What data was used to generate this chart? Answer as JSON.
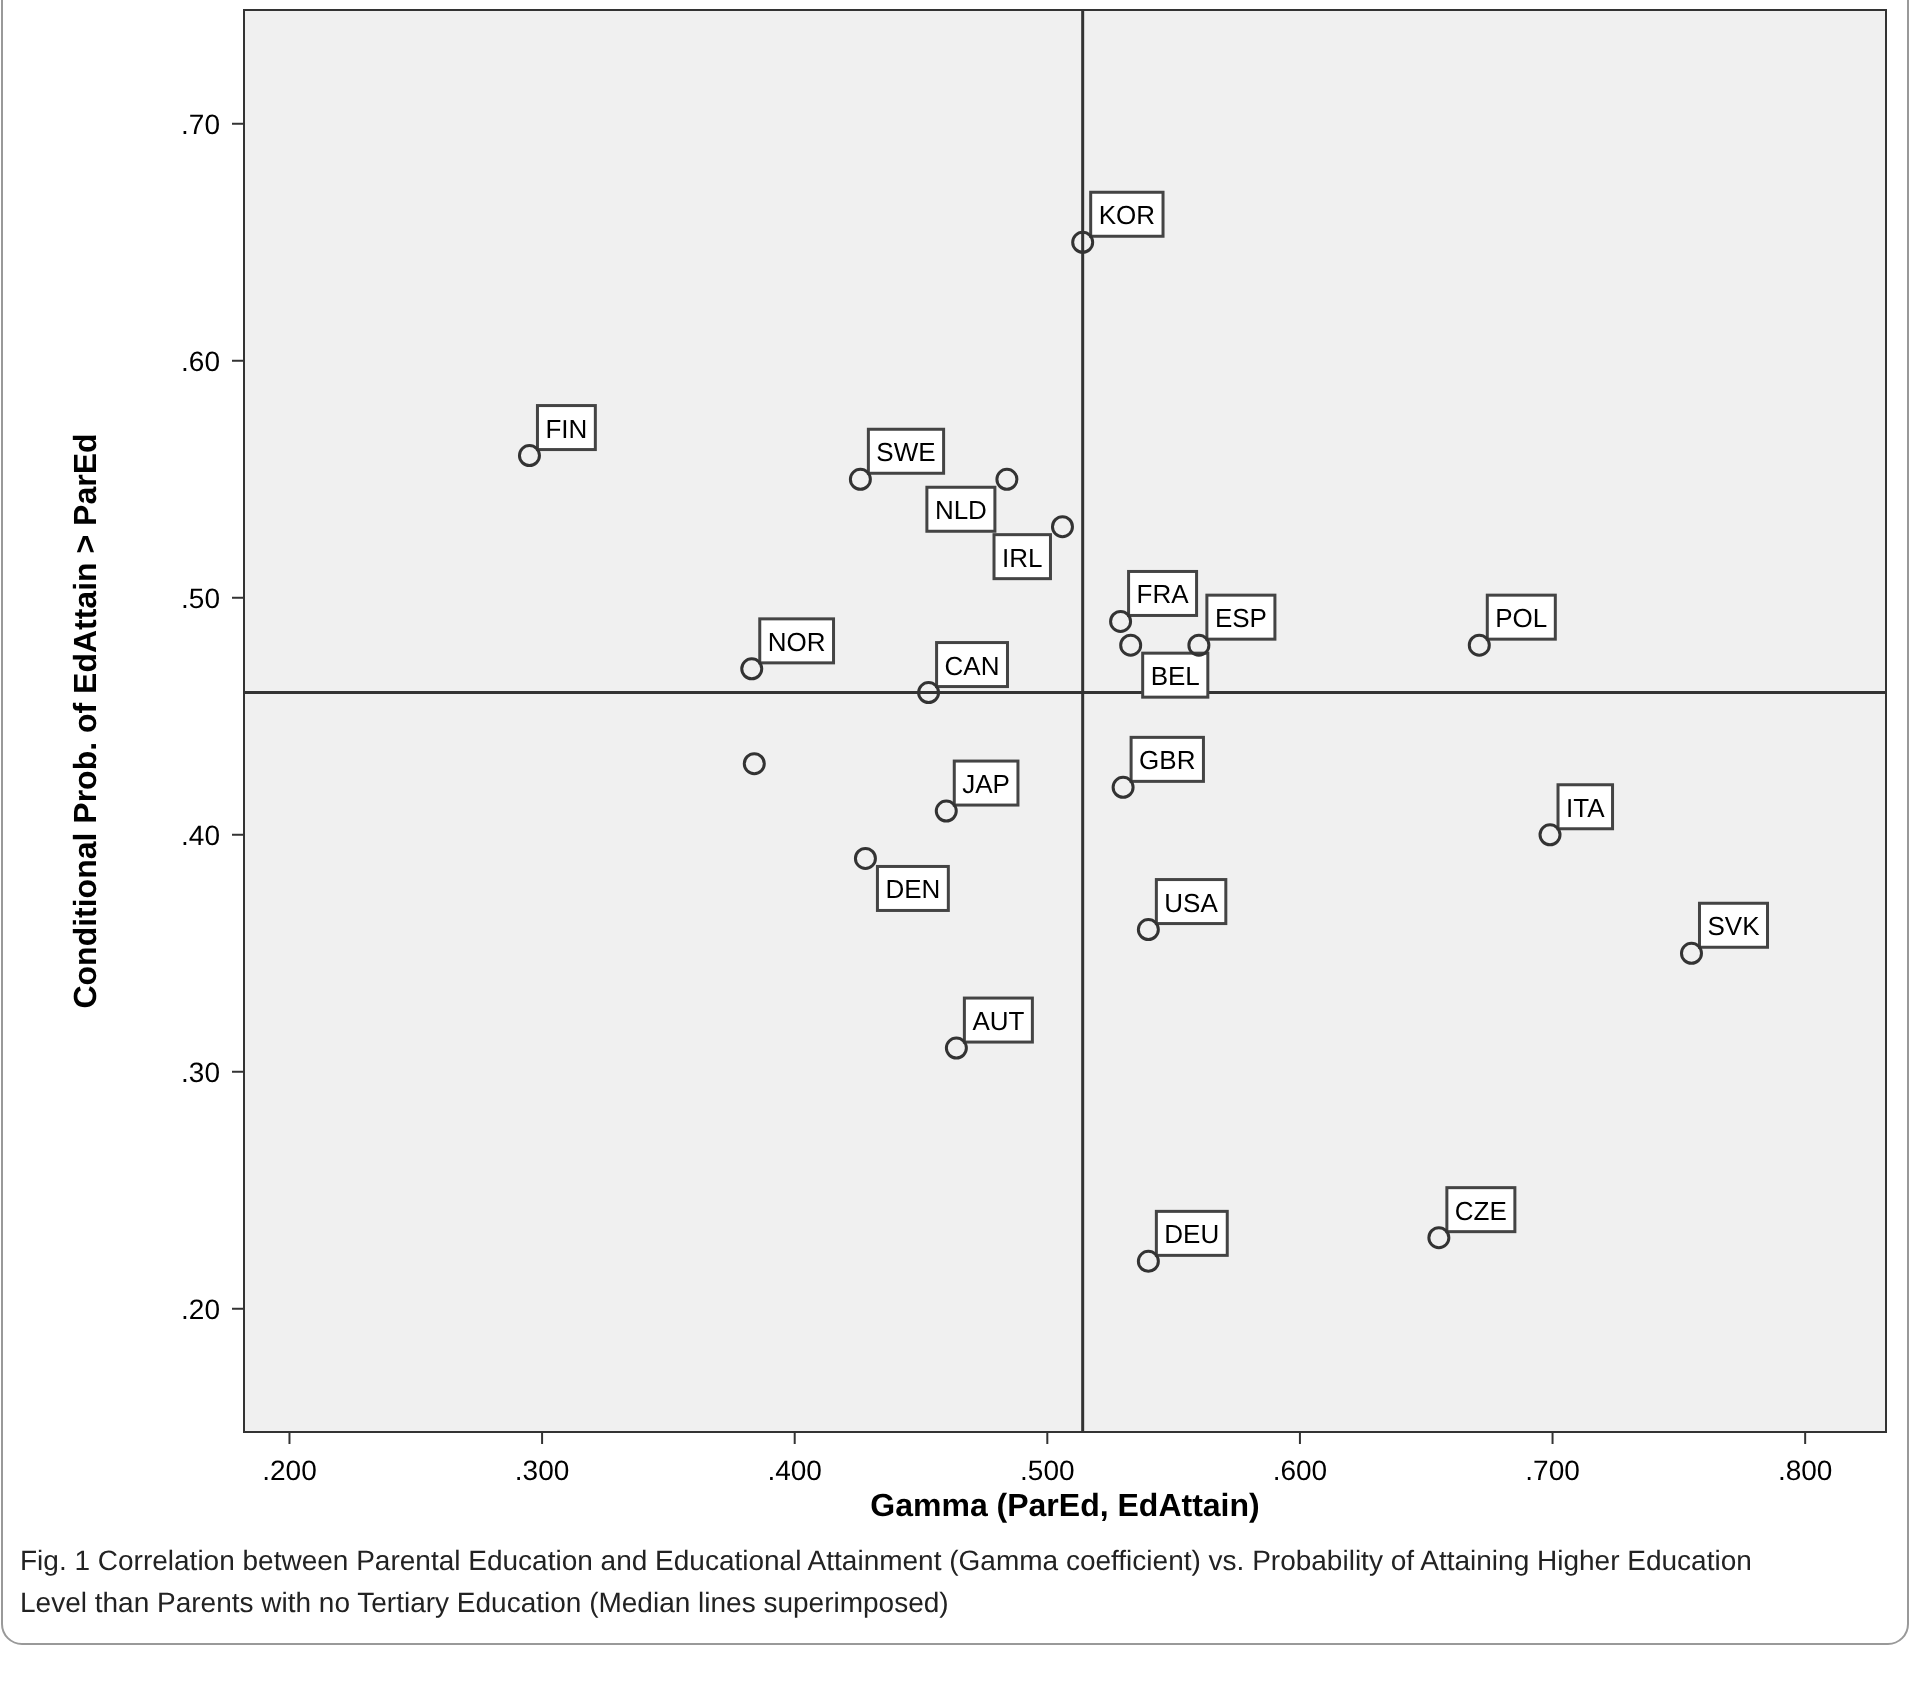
{
  "chart_data": {
    "type": "scatter",
    "xlabel": "Gamma (ParEd, EdAttain)",
    "ylabel": "Conditional Prob. of EdAttain > ParEd",
    "xlim": [
      0.182,
      0.832
    ],
    "ylim": [
      0.148,
      0.748
    ],
    "xticks": [
      {
        "value": 0.2,
        "label": ".200"
      },
      {
        "value": 0.3,
        "label": ".300"
      },
      {
        "value": 0.4,
        "label": ".400"
      },
      {
        "value": 0.5,
        "label": ".500"
      },
      {
        "value": 0.6,
        "label": ".600"
      },
      {
        "value": 0.7,
        "label": ".700"
      },
      {
        "value": 0.8,
        "label": ".800"
      }
    ],
    "yticks": [
      {
        "value": 0.2,
        "label": ".20"
      },
      {
        "value": 0.3,
        "label": ".30"
      },
      {
        "value": 0.4,
        "label": ".40"
      },
      {
        "value": 0.5,
        "label": ".50"
      },
      {
        "value": 0.6,
        "label": ".60"
      },
      {
        "value": 0.7,
        "label": ".70"
      }
    ],
    "grid": false,
    "marker": "circle",
    "series": [
      {
        "color": "#333333",
        "x": [
          0.295,
          0.426,
          0.484,
          0.506,
          0.514,
          0.529,
          0.533,
          0.56,
          0.671,
          0.383,
          0.384,
          0.453,
          0.46,
          0.428,
          0.53,
          0.699,
          0.54,
          0.755,
          0.464,
          0.54,
          0.655
        ],
        "values": [
          0.56,
          0.55,
          0.55,
          0.53,
          0.65,
          0.49,
          0.48,
          0.48,
          0.48,
          0.47,
          0.43,
          0.46,
          0.41,
          0.39,
          0.42,
          0.4,
          0.36,
          0.35,
          0.31,
          0.22,
          0.23
        ]
      }
    ],
    "ref_lines": [
      {
        "axis": "x",
        "value": 0.514,
        "color": "#333333"
      },
      {
        "axis": "y",
        "value": 0.46,
        "color": "#333333"
      }
    ],
    "annotations": [
      {
        "text": "FIN",
        "x": 0.295,
        "y": 0.56
      },
      {
        "text": "SWE",
        "x": 0.426,
        "y": 0.55
      },
      {
        "text": "NLD",
        "x": 0.484,
        "y": 0.55
      },
      {
        "text": "IRL",
        "x": 0.506,
        "y": 0.53
      },
      {
        "text": "KOR",
        "x": 0.514,
        "y": 0.65
      },
      {
        "text": "FRA",
        "x": 0.529,
        "y": 0.49
      },
      {
        "text": "BEL",
        "x": 0.533,
        "y": 0.48
      },
      {
        "text": "ESP",
        "x": 0.56,
        "y": 0.48
      },
      {
        "text": "POL",
        "x": 0.671,
        "y": 0.48
      },
      {
        "text": "NOR",
        "x": 0.383,
        "y": 0.47
      },
      {
        "text": "CAN",
        "x": 0.453,
        "y": 0.46
      },
      {
        "text": "JAP",
        "x": 0.46,
        "y": 0.41
      },
      {
        "text": "DEN",
        "x": 0.428,
        "y": 0.39
      },
      {
        "text": "GBR",
        "x": 0.53,
        "y": 0.42
      },
      {
        "text": "ITA",
        "x": 0.699,
        "y": 0.4
      },
      {
        "text": "USA",
        "x": 0.54,
        "y": 0.36
      },
      {
        "text": "SVK",
        "x": 0.755,
        "y": 0.35
      },
      {
        "text": "AUT",
        "x": 0.464,
        "y": 0.31
      },
      {
        "text": "DEU",
        "x": 0.54,
        "y": 0.22
      },
      {
        "text": "CZE",
        "x": 0.655,
        "y": 0.23
      },
      "Fig. 1 Correlation between Parental Education and Educational Attainment (Gamma coefficient) vs. Probability of Attaining Higher Education Level than Parents with no Tertiary Education (Median lines superimposed)"
    ]
  }
}
